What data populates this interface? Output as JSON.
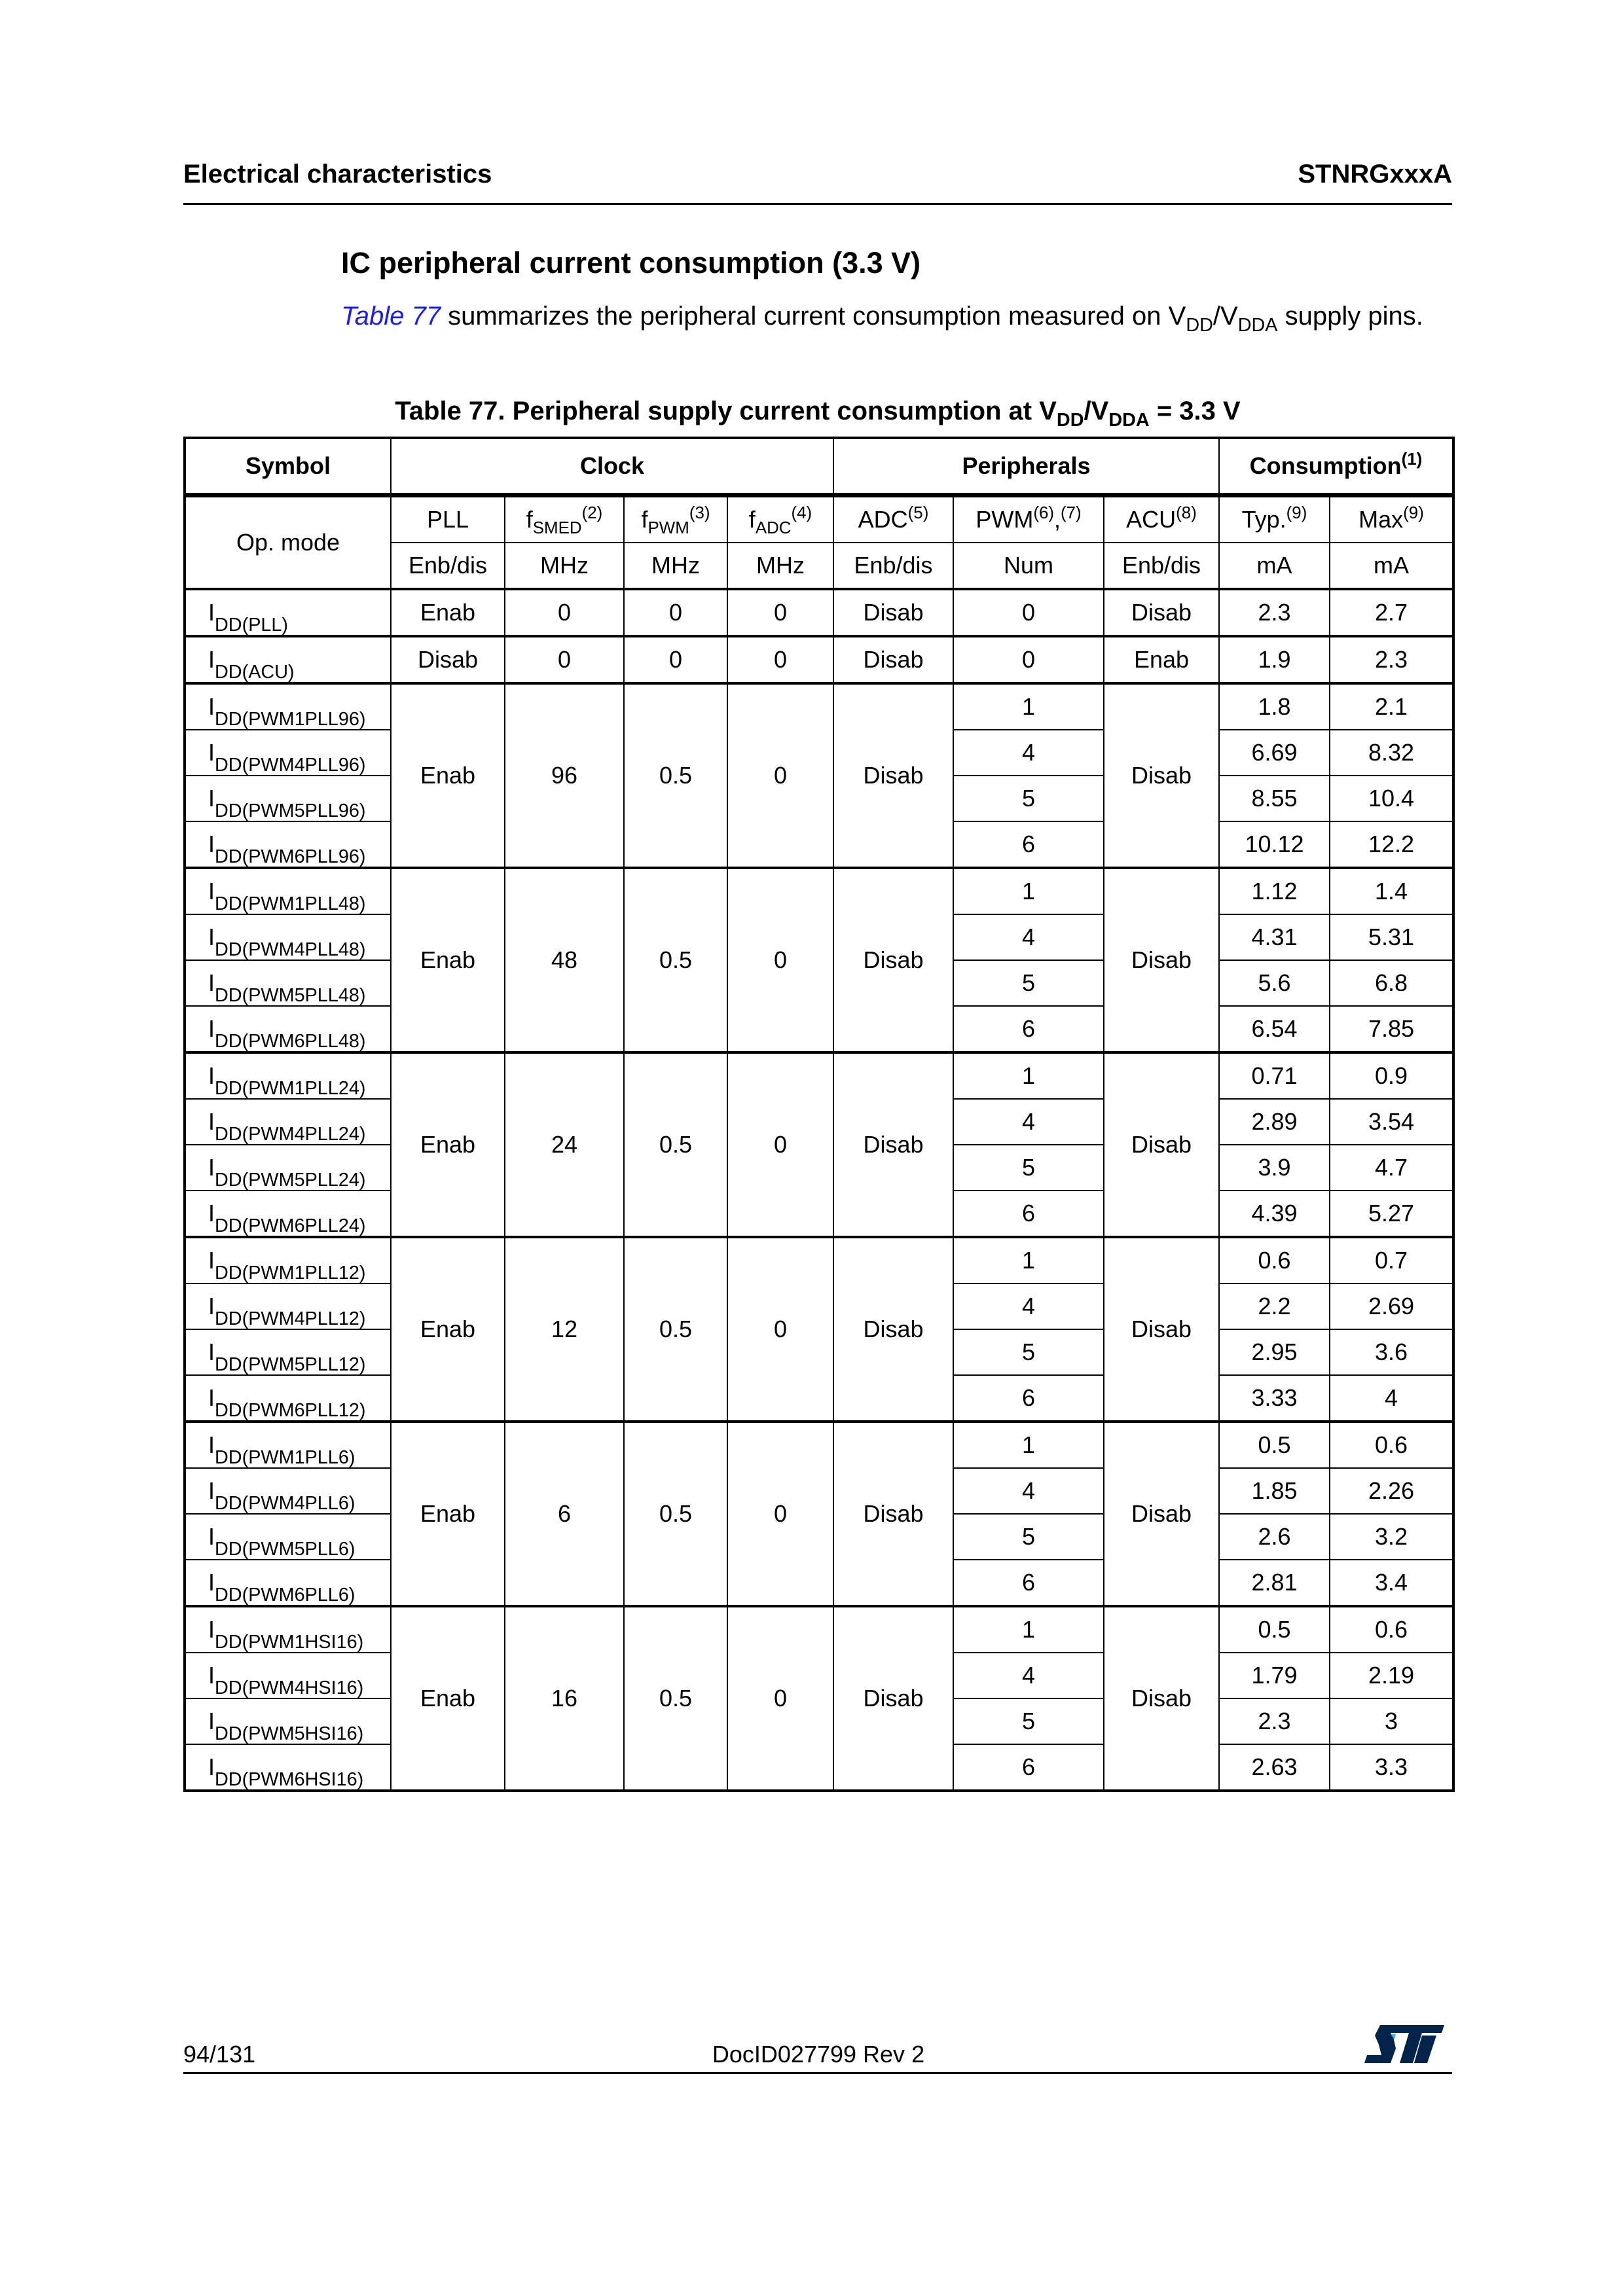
{
  "header": {
    "section": "Electrical characteristics",
    "doc": "STNRGxxxA"
  },
  "heading": "IC peripheral current consumption (3.3 V)",
  "paragraph": {
    "link": "Table 77",
    "text1": " summarizes the peripheral current consumption measured on V",
    "sub1": "DD",
    "text2": "/V",
    "sub2": "DDA",
    "text3": " supply pins."
  },
  "caption": {
    "text1": "Table 77. Peripheral supply current consumption at V",
    "sub1": "DD",
    "text2": "/V",
    "sub2": "DDA",
    "text3": " = 3.3 V"
  },
  "table": {
    "groups_header": [
      {
        "label": "Symbol"
      },
      {
        "label": "Clock"
      },
      {
        "label": "Peripherals"
      },
      {
        "label": "Consumption",
        "sup": "(1)"
      }
    ],
    "op_mode": "Op. mode",
    "columns": [
      {
        "main": "PLL",
        "unit": "Enb/dis"
      },
      {
        "main": "f",
        "sub": "SMED",
        "sup": "(2)",
        "unit": "MHz"
      },
      {
        "main": "f",
        "sub": "PWM",
        "sup": "(3)",
        "unit": "MHz"
      },
      {
        "main": "f",
        "sub": "ADC",
        "sup": "(4)",
        "unit": "MHz"
      },
      {
        "main": "ADC",
        "sup": "(5)",
        "unit": "Enb/dis"
      },
      {
        "main": "PWM",
        "sup": "(6)",
        "mid": ",",
        "sup2": "(7)",
        "unit": "Num"
      },
      {
        "main": "ACU",
        "sup": "(8)",
        "unit": "Enb/dis"
      },
      {
        "main": "Typ.",
        "sup": "(9)",
        "unit": "mA"
      },
      {
        "main": "Max",
        "sup": "(9)",
        "unit": "mA"
      }
    ],
    "single_rows": [
      {
        "symbol": "I",
        "symbol_sub": "DD(PLL)",
        "pll": "Enab",
        "fsmed": "0",
        "fpwm": "0",
        "fadc": "0",
        "adc": "Disab",
        "pwm": "0",
        "acu": "Disab",
        "typ": "2.3",
        "max": "2.7"
      },
      {
        "symbol": "I",
        "symbol_sub": "DD(ACU)",
        "pll": "Disab",
        "fsmed": "0",
        "fpwm": "0",
        "fadc": "0",
        "adc": "Disab",
        "pwm": "0",
        "acu": "Enab",
        "typ": "1.9",
        "max": "2.3"
      }
    ],
    "groups": [
      {
        "pll": "Enab",
        "fsmed": "96",
        "fpwm": "0.5",
        "fadc": "0",
        "adc": "Disab",
        "acu": "Disab",
        "rows": [
          {
            "symbol": "I",
            "symbol_sub": "DD(PWM1PLL96)",
            "pwm": "1",
            "typ": "1.8",
            "max": "2.1"
          },
          {
            "symbol": "I",
            "symbol_sub": "DD(PWM4PLL96)",
            "pwm": "4",
            "typ": "6.69",
            "max": "8.32"
          },
          {
            "symbol": "I",
            "symbol_sub": "DD(PWM5PLL96)",
            "pwm": "5",
            "typ": "8.55",
            "max": "10.4"
          },
          {
            "symbol": "I",
            "symbol_sub": "DD(PWM6PLL96)",
            "pwm": "6",
            "typ": "10.12",
            "max": "12.2"
          }
        ]
      },
      {
        "pll": "Enab",
        "fsmed": "48",
        "fpwm": "0.5",
        "fadc": "0",
        "adc": "Disab",
        "acu": "Disab",
        "rows": [
          {
            "symbol": "I",
            "symbol_sub": "DD(PWM1PLL48)",
            "pwm": "1",
            "typ": "1.12",
            "max": "1.4"
          },
          {
            "symbol": "I",
            "symbol_sub": "DD(PWM4PLL48)",
            "pwm": "4",
            "typ": "4.31",
            "max": "5.31"
          },
          {
            "symbol": "I",
            "symbol_sub": "DD(PWM5PLL48)",
            "pwm": "5",
            "typ": "5.6",
            "max": "6.8"
          },
          {
            "symbol": "I",
            "symbol_sub": "DD(PWM6PLL48)",
            "pwm": "6",
            "typ": "6.54",
            "max": "7.85"
          }
        ]
      },
      {
        "pll": "Enab",
        "fsmed": "24",
        "fpwm": "0.5",
        "fadc": "0",
        "adc": "Disab",
        "acu": "Disab",
        "rows": [
          {
            "symbol": "I",
            "symbol_sub": "DD(PWM1PLL24)",
            "pwm": "1",
            "typ": "0.71",
            "max": "0.9"
          },
          {
            "symbol": "I",
            "symbol_sub": "DD(PWM4PLL24)",
            "pwm": "4",
            "typ": "2.89",
            "max": "3.54"
          },
          {
            "symbol": "I",
            "symbol_sub": "DD(PWM5PLL24)",
            "pwm": "5",
            "typ": "3.9",
            "max": "4.7"
          },
          {
            "symbol": "I",
            "symbol_sub": "DD(PWM6PLL24)",
            "pwm": "6",
            "typ": "4.39",
            "max": "5.27"
          }
        ]
      },
      {
        "pll": "Enab",
        "fsmed": "12",
        "fpwm": "0.5",
        "fadc": "0",
        "adc": "Disab",
        "acu": "Disab",
        "rows": [
          {
            "symbol": "I",
            "symbol_sub": "DD(PWM1PLL12)",
            "pwm": "1",
            "typ": "0.6",
            "max": "0.7"
          },
          {
            "symbol": "I",
            "symbol_sub": "DD(PWM4PLL12)",
            "pwm": "4",
            "typ": "2.2",
            "max": "2.69"
          },
          {
            "symbol": "I",
            "symbol_sub": "DD(PWM5PLL12)",
            "pwm": "5",
            "typ": "2.95",
            "max": "3.6"
          },
          {
            "symbol": "I",
            "symbol_sub": "DD(PWM6PLL12)",
            "pwm": "6",
            "typ": "3.33",
            "max": "4"
          }
        ]
      },
      {
        "pll": "Enab",
        "fsmed": "6",
        "fpwm": "0.5",
        "fadc": "0",
        "adc": "Disab",
        "acu": "Disab",
        "rows": [
          {
            "symbol": "I",
            "symbol_sub": "DD(PWM1PLL6)",
            "pwm": "1",
            "typ": "0.5",
            "max": "0.6"
          },
          {
            "symbol": "I",
            "symbol_sub": "DD(PWM4PLL6)",
            "pwm": "4",
            "typ": "1.85",
            "max": "2.26"
          },
          {
            "symbol": "I",
            "symbol_sub": "DD(PWM5PLL6)",
            "pwm": "5",
            "typ": "2.6",
            "max": "3.2"
          },
          {
            "symbol": "I",
            "symbol_sub": "DD(PWM6PLL6)",
            "pwm": "6",
            "typ": "2.81",
            "max": "3.4"
          }
        ]
      },
      {
        "pll": "Enab",
        "fsmed": "16",
        "fpwm": "0.5",
        "fadc": "0",
        "adc": "Disab",
        "acu": "Disab",
        "rows": [
          {
            "symbol": "I",
            "symbol_sub": "DD(PWM1HSI16)",
            "pwm": "1",
            "typ": "0.5",
            "max": "0.6"
          },
          {
            "symbol": "I",
            "symbol_sub": "DD(PWM4HSI16)",
            "pwm": "4",
            "typ": "1.79",
            "max": "2.19"
          },
          {
            "symbol": "I",
            "symbol_sub": "DD(PWM5HSI16)",
            "pwm": "5",
            "typ": "2.3",
            "max": "3"
          },
          {
            "symbol": "I",
            "symbol_sub": "DD(PWM6HSI16)",
            "pwm": "6",
            "typ": "2.63",
            "max": "3.3"
          }
        ]
      }
    ]
  },
  "footer": {
    "page": "94/131",
    "doc_id": "DocID027799 Rev 2",
    "logo_text": "ST"
  },
  "colors": {
    "link": "#1a1aff",
    "logo_blue": "#03234b",
    "logo_accent": "#3cb4e6"
  }
}
